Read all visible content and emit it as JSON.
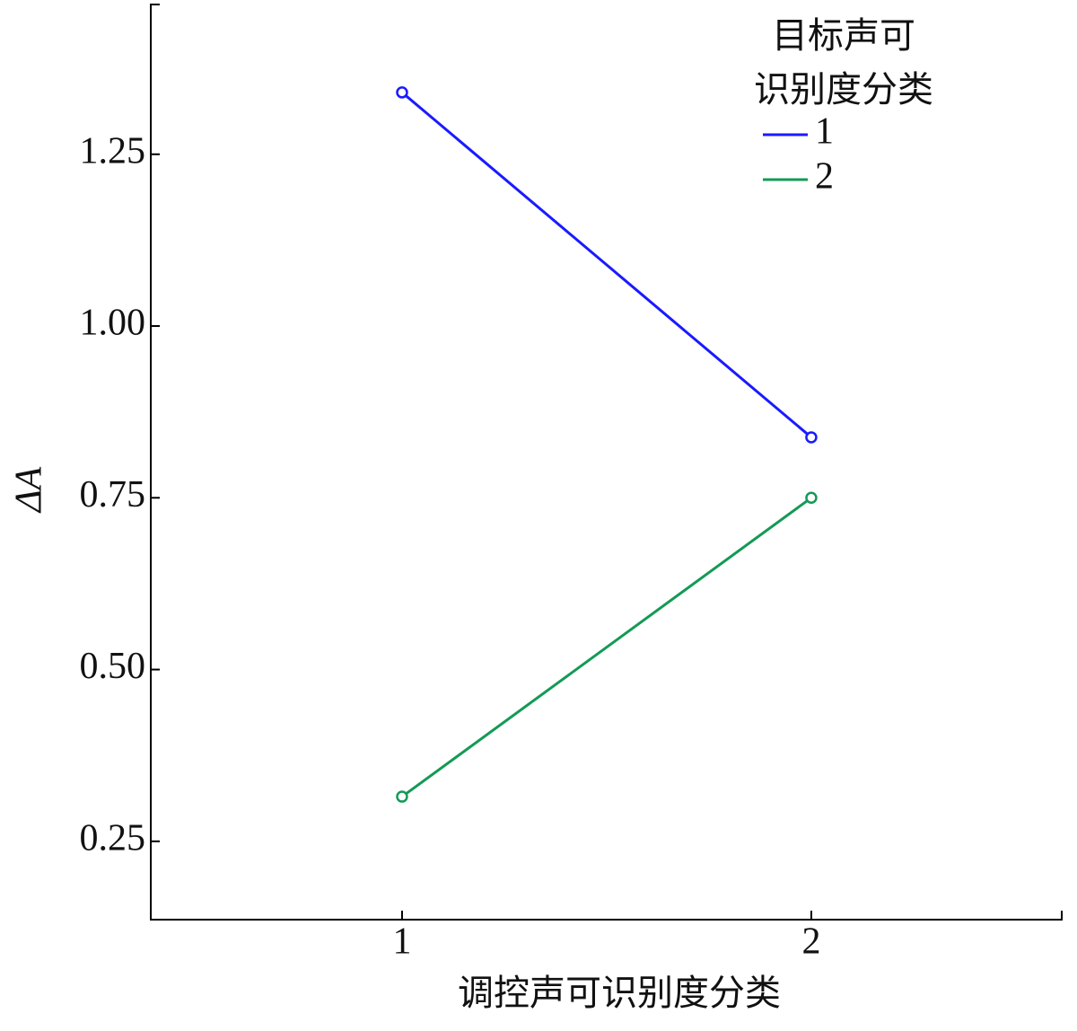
{
  "chart_data": {
    "type": "line",
    "x_label": "调控声可识别度分类",
    "y_label": "ΔA",
    "legend_title": [
      "目标声可",
      "识别度分类"
    ],
    "x": [
      1,
      2
    ],
    "series": [
      {
        "name": "1",
        "color": "#1a1aff",
        "values": [
          1.34,
          0.838
        ]
      },
      {
        "name": "2",
        "color": "#139a55",
        "values": [
          0.315,
          0.75
        ]
      }
    ],
    "xlim": [
      0.386,
      2.612
    ],
    "xticks": [
      1,
      2
    ],
    "ylim": [
      0.136,
      1.468
    ],
    "yticks": [
      {
        "value": 0.25,
        "label": "0.25"
      },
      {
        "value": 0.5,
        "label": "0.50"
      },
      {
        "value": 0.75,
        "label": "0.75"
      },
      {
        "value": 1.0,
        "label": "1.00"
      },
      {
        "value": 1.25,
        "label": "1.25"
      }
    ],
    "grid": false,
    "legend_position": "upper right"
  }
}
